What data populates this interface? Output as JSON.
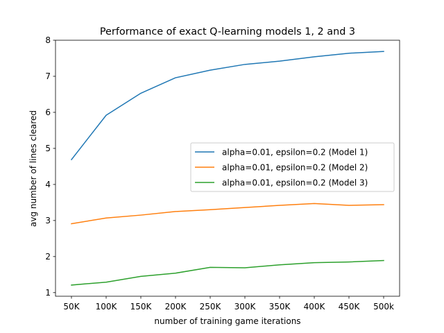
{
  "chart_data": {
    "type": "line",
    "title": "Performance of exact Q-learning models 1, 2 and 3",
    "xlabel": "number of training game iterations",
    "ylabel": "avg number of lines cleared",
    "categories": [
      "50K",
      "100K",
      "150K",
      "200K",
      "250K",
      "300K",
      "350K",
      "400K",
      "450K",
      "500k"
    ],
    "ylim": [
      0.9,
      8.0
    ],
    "yticks": [
      1,
      2,
      3,
      4,
      5,
      6,
      7,
      8
    ],
    "grid": false,
    "legend_position": "center-right",
    "series": [
      {
        "name": "alpha=0.01, epsilon=0.2 (Model 1)",
        "color": "#1f77b4",
        "values": [
          4.69,
          5.92,
          6.53,
          6.96,
          7.17,
          7.33,
          7.42,
          7.54,
          7.64,
          7.69
        ]
      },
      {
        "name": "alpha=0.01, epsilon=0.2 (Model 2)",
        "color": "#ff7f0e",
        "values": [
          2.91,
          3.07,
          3.15,
          3.25,
          3.3,
          3.36,
          3.42,
          3.47,
          3.42,
          3.44
        ]
      },
      {
        "name": "alpha=0.01, epsilon=0.2 (Model 3)",
        "color": "#2ca02c",
        "values": [
          1.21,
          1.29,
          1.45,
          1.54,
          1.7,
          1.69,
          1.77,
          1.83,
          1.85,
          1.89
        ]
      }
    ]
  }
}
